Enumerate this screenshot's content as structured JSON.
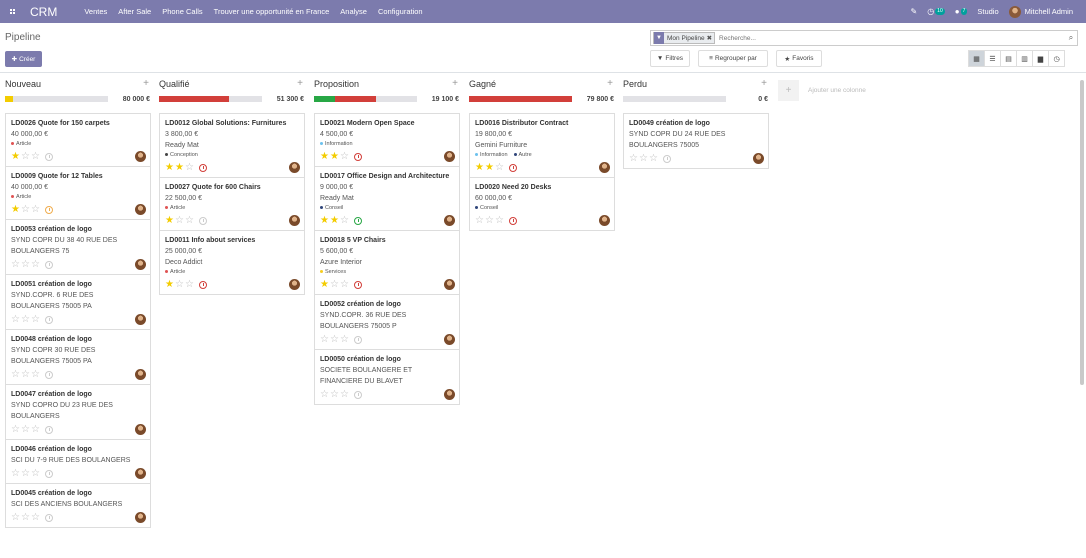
{
  "navbar": {
    "brand": "CRM",
    "menu": [
      "Ventes",
      "After Sale",
      "Phone Calls",
      "Trouver une opportunité en France",
      "Analyse",
      "Configuration"
    ],
    "activity_count": "10",
    "message_count": "7",
    "studio": "Studio",
    "user": "Mitchell Admin"
  },
  "control": {
    "title": "Pipeline",
    "create": "Créer",
    "facet": "Mon Pipeline",
    "search_placeholder": "Recherche...",
    "filters": "Filtres",
    "group_by": "Regrouper par",
    "favorites": "Favoris"
  },
  "add_column": "Ajouter une colonne",
  "columns": [
    {
      "name": "Nouveau",
      "total": "80 000 €",
      "progress": [
        {
          "color": "#f3cc00",
          "percent": 8
        }
      ],
      "cards": [
        {
          "title": "LD0026 Quote for 150 carpets",
          "lines": [
            "40 000,00 €"
          ],
          "tags": [
            {
              "label": "Article",
              "color": "#e05353"
            }
          ],
          "stars": 1,
          "activity": "empty"
        },
        {
          "title": "LD0009 Quote for 12 Tables",
          "lines": [
            "40 000,00 €"
          ],
          "tags": [
            {
              "label": "Article",
              "color": "#e05353"
            }
          ],
          "stars": 1,
          "activity": "orange"
        },
        {
          "title": "LD0053 création de logo",
          "lines": [
            "SYND COPR DU 38 40 RUE DES",
            "BOULANGERS 75"
          ],
          "tags": [],
          "stars": 0,
          "activity": "empty"
        },
        {
          "title": "LD0051 création de logo",
          "lines": [
            "SYND.COPR. 6 RUE DES",
            "BOULANGERS 75005 PA"
          ],
          "tags": [],
          "stars": 0,
          "activity": "empty"
        },
        {
          "title": "LD0048 création de logo",
          "lines": [
            "SYND COPR 30 RUE DES",
            "BOULANGERS 75005 PA"
          ],
          "tags": [],
          "stars": 0,
          "activity": "empty"
        },
        {
          "title": "LD0047 création de logo",
          "lines": [
            "SYND COPRO DU 23 RUE DES",
            "BOULANGERS"
          ],
          "tags": [],
          "stars": 0,
          "activity": "empty"
        },
        {
          "title": "LD0046 création de logo",
          "lines": [
            "SCI DU 7-9 RUE DES BOULANGERS"
          ],
          "tags": [],
          "stars": 0,
          "activity": "empty"
        },
        {
          "title": "LD0045 création de logo",
          "lines": [
            "SCI DES ANCIENS BOULANGERS"
          ],
          "tags": [],
          "stars": 0,
          "activity": "empty"
        }
      ]
    },
    {
      "name": "Qualifié",
      "total": "51 300 €",
      "progress": [
        {
          "color": "#d23f3a",
          "percent": 68
        }
      ],
      "cards": [
        {
          "title": "LD0012 Global Solutions: Furnitures",
          "lines": [
            "3 800,00 €",
            "Ready Mat"
          ],
          "tags": [
            {
              "label": "Conception",
              "color": "#444444"
            }
          ],
          "stars": 2,
          "activity": "red"
        },
        {
          "title": "LD0027 Quote for 600 Chairs",
          "lines": [
            "22 500,00 €"
          ],
          "tags": [
            {
              "label": "Article",
              "color": "#e05353"
            }
          ],
          "stars": 1,
          "activity": "empty"
        },
        {
          "title": "LD0011 Info about services",
          "lines": [
            "25 000,00 €",
            "Deco Addict"
          ],
          "tags": [
            {
              "label": "Article",
              "color": "#e05353"
            }
          ],
          "stars": 1,
          "activity": "red"
        }
      ]
    },
    {
      "name": "Proposition",
      "total": "19 100 €",
      "progress": [
        {
          "color": "#28a745",
          "percent": 20
        },
        {
          "color": "#d23f3a",
          "percent": 40
        }
      ],
      "cards": [
        {
          "title": "LD0021 Modern Open Space",
          "lines": [
            "4 500,00 €"
          ],
          "tags": [
            {
              "label": "Information",
              "color": "#6cc1ed"
            }
          ],
          "stars": 2,
          "activity": "red"
        },
        {
          "title": "LD0017 Office Design and Architecture",
          "lines": [
            "9 000,00 €",
            "Ready Mat"
          ],
          "tags": [
            {
              "label": "Conseil",
              "color": "#30467a"
            }
          ],
          "stars": 2,
          "activity": "green"
        },
        {
          "title": "LD0018 5 VP Chairs",
          "lines": [
            "5 600,00 €",
            "Azure Interior"
          ],
          "tags": [
            {
              "label": "Services",
              "color": "#f7cd1f"
            }
          ],
          "stars": 1,
          "activity": "red"
        },
        {
          "title": "LD0052 création de logo",
          "lines": [
            "SYND.COPR. 36 RUE DES",
            "BOULANGERS 75005 P"
          ],
          "tags": [],
          "stars": 0,
          "activity": "empty"
        },
        {
          "title": "LD0050 création de logo",
          "lines": [
            "SOCIETE BOULANGERE ET",
            "FINANCIERE DU BLAVET"
          ],
          "tags": [],
          "stars": 0,
          "activity": "empty"
        }
      ]
    },
    {
      "name": "Gagné",
      "total": "79 800 €",
      "progress": [
        {
          "color": "#d23f3a",
          "percent": 100
        }
      ],
      "cards": [
        {
          "title": "LD0016 Distributor Contract",
          "lines": [
            "19 800,00 €",
            "Gemini Furniture"
          ],
          "tags": [
            {
              "label": "Information",
              "color": "#6cc1ed"
            },
            {
              "label": "Autre",
              "color": "#30467a"
            }
          ],
          "stars": 2,
          "activity": "red"
        },
        {
          "title": "LD0020 Need 20 Desks",
          "lines": [
            "60 000,00 €"
          ],
          "tags": [
            {
              "label": "Conseil",
              "color": "#30467a"
            }
          ],
          "stars": 0,
          "activity": "red"
        }
      ]
    },
    {
      "name": "Perdu",
      "total": "0 €",
      "progress": [],
      "cards": [
        {
          "title": "LD0049 création de logo",
          "lines": [
            "SYND COPR DU 24 RUE DES",
            "BOULANGERS 75005"
          ],
          "tags": [],
          "stars": 0,
          "activity": "empty"
        }
      ]
    }
  ]
}
